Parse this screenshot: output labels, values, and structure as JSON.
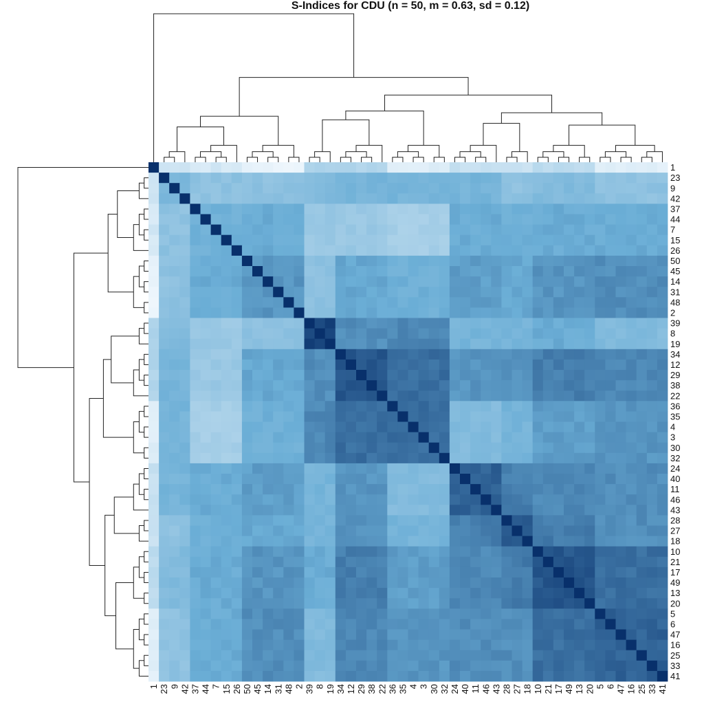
{
  "chart_data": {
    "type": "heatmap",
    "title": "S-Indices for CDU (n = 50, m = 0.63, sd = 0.12)",
    "order": [
      "1",
      "23",
      "9",
      "42",
      "37",
      "44",
      "7",
      "15",
      "26",
      "50",
      "45",
      "14",
      "31",
      "48",
      "2",
      "39",
      "8",
      "19",
      "34",
      "12",
      "29",
      "38",
      "22",
      "36",
      "35",
      "4",
      "3",
      "30",
      "32",
      "24",
      "40",
      "11",
      "46",
      "43",
      "28",
      "27",
      "18",
      "10",
      "21",
      "17",
      "49",
      "13",
      "20",
      "5",
      "6",
      "47",
      "16",
      "25",
      "33",
      "41"
    ],
    "blocks": {
      "A": [
        "1"
      ],
      "B": [
        "23",
        "9",
        "42"
      ],
      "C": [
        "37",
        "44",
        "7",
        "15",
        "26"
      ],
      "D": [
        "50",
        "45",
        "14",
        "31",
        "48",
        "2"
      ],
      "E": [
        "39",
        "8",
        "19"
      ],
      "F": [
        "34",
        "12",
        "29",
        "38",
        "22"
      ],
      "G": [
        "36",
        "35",
        "4",
        "3",
        "30",
        "32"
      ],
      "H": [
        "24",
        "40",
        "11",
        "46",
        "43"
      ],
      "I": [
        "28",
        "27",
        "18"
      ],
      "J": [
        "10",
        "21",
        "17",
        "49",
        "13",
        "20"
      ],
      "K": [
        "5",
        "6",
        "47",
        "16",
        "25",
        "33",
        "41"
      ]
    },
    "block_similarity": {
      "A": {
        "A": 1.0,
        "B": 0.2,
        "C": 0.15,
        "D": 0.05,
        "E": 0.3,
        "F": 0.3,
        "G": 0.1,
        "H": 0.2,
        "I": 0.2,
        "J": 0.25,
        "K": 0.1
      },
      "B": {
        "A": 0.2,
        "B": 0.55,
        "C": 0.45,
        "D": 0.45,
        "E": 0.5,
        "F": 0.55,
        "G": 0.55,
        "H": 0.55,
        "I": 0.45,
        "J": 0.5,
        "K": 0.45
      },
      "C": {
        "A": 0.15,
        "B": 0.45,
        "C": 0.58,
        "D": 0.6,
        "E": 0.4,
        "F": 0.4,
        "G": 0.35,
        "H": 0.6,
        "I": 0.58,
        "J": 0.6,
        "K": 0.6
      },
      "D": {
        "A": 0.05,
        "B": 0.45,
        "C": 0.6,
        "D": 0.68,
        "E": 0.45,
        "F": 0.62,
        "G": 0.58,
        "H": 0.65,
        "I": 0.62,
        "J": 0.68,
        "K": 0.7
      },
      "E": {
        "A": 0.3,
        "B": 0.5,
        "C": 0.4,
        "D": 0.45,
        "E": 0.93,
        "F": 0.7,
        "G": 0.72,
        "H": 0.55,
        "I": 0.55,
        "J": 0.6,
        "K": 0.5
      },
      "F": {
        "A": 0.3,
        "B": 0.55,
        "C": 0.4,
        "D": 0.62,
        "E": 0.7,
        "F": 0.88,
        "G": 0.8,
        "H": 0.68,
        "I": 0.68,
        "J": 0.75,
        "K": 0.72
      },
      "G": {
        "A": 0.1,
        "B": 0.55,
        "C": 0.35,
        "D": 0.58,
        "E": 0.72,
        "F": 0.8,
        "G": 0.8,
        "H": 0.5,
        "I": 0.55,
        "J": 0.65,
        "K": 0.68
      },
      "H": {
        "A": 0.2,
        "B": 0.55,
        "C": 0.6,
        "D": 0.65,
        "E": 0.55,
        "F": 0.68,
        "G": 0.5,
        "H": 0.84,
        "I": 0.75,
        "J": 0.72,
        "K": 0.7
      },
      "I": {
        "A": 0.2,
        "B": 0.45,
        "C": 0.58,
        "D": 0.62,
        "E": 0.55,
        "F": 0.68,
        "G": 0.55,
        "H": 0.75,
        "I": 0.88,
        "J": 0.76,
        "K": 0.7
      },
      "J": {
        "A": 0.25,
        "B": 0.5,
        "C": 0.6,
        "D": 0.68,
        "E": 0.6,
        "F": 0.75,
        "G": 0.65,
        "H": 0.72,
        "I": 0.76,
        "J": 0.88,
        "K": 0.8
      },
      "K": {
        "A": 0.1,
        "B": 0.45,
        "C": 0.6,
        "D": 0.7,
        "E": 0.5,
        "F": 0.72,
        "G": 0.68,
        "H": 0.7,
        "I": 0.7,
        "J": 0.8,
        "K": 0.84
      }
    },
    "diagonal": 1.0,
    "color_scale": {
      "low": "#f7fbff",
      "mid": "#6baed6",
      "high": "#08306b"
    },
    "row_labels_side": "right",
    "col_labels_side": "bottom",
    "dendrograms": [
      "top",
      "left"
    ]
  }
}
